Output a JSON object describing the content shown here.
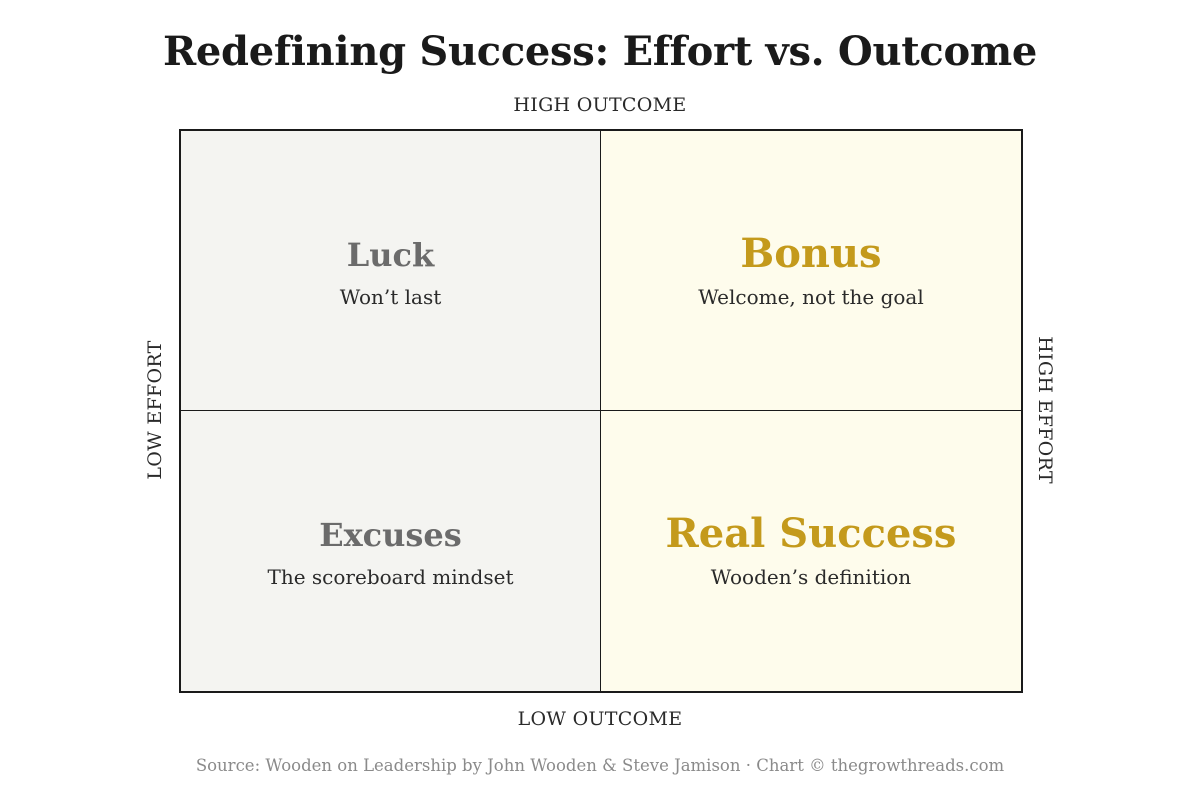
{
  "title": "Redefining Success: Effort vs. Outcome",
  "axes": {
    "top": "HIGH OUTCOME",
    "bottom": "LOW OUTCOME",
    "left": "LOW EFFORT",
    "right": "HIGH EFFORT"
  },
  "quadrants": {
    "top_left": {
      "title": "Luck",
      "subtitle": "Won’t last"
    },
    "top_right": {
      "title": "Bonus",
      "subtitle": "Welcome, not the goal"
    },
    "bottom_left": {
      "title": "Excuses",
      "subtitle": "The scoreboard mindset"
    },
    "bottom_right": {
      "title": "Real Success",
      "subtitle": "Wooden’s definition"
    }
  },
  "colors": {
    "muted_fill": "#f4f4f1",
    "highlight_fill": "#fefcec",
    "muted_text": "#6b6b6b",
    "accent_gold": "#c49a1c"
  },
  "source": "Source: Wooden on Leadership by John Wooden & Steve Jamison · Chart © thegrowthreads.com"
}
